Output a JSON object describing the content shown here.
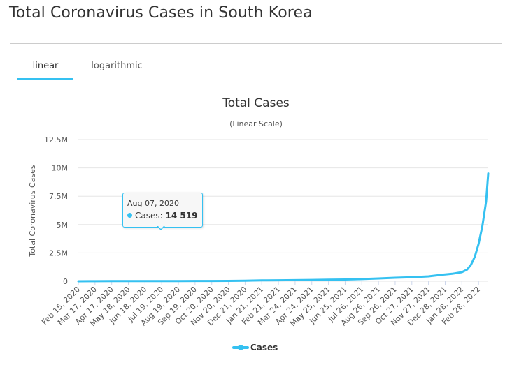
{
  "page": {
    "title": "Total Coronavirus Cases in South Korea"
  },
  "tabs": [
    {
      "label": "linear",
      "active": true
    },
    {
      "label": "logarithmic",
      "active": false
    }
  ],
  "tooltip": {
    "date": "Aug 07, 2020",
    "label": "Cases:",
    "value": "14 519"
  },
  "colors": {
    "series": "#35c1f1",
    "tab_active": "#35c1f1"
  },
  "chart_data": {
    "type": "line",
    "title": "Total Cases",
    "subtitle": "(Linear Scale)",
    "ylabel": "Total Coronavirus Cases",
    "xlabel": "",
    "ylim": [
      0,
      12500000
    ],
    "yticks": [
      0,
      2500000,
      5000000,
      7500000,
      10000000,
      12500000
    ],
    "ytick_labels": [
      "0",
      "2.5M",
      "5M",
      "7.5M",
      "10M",
      "12.5M"
    ],
    "xtick_labels": [
      "Feb 15, 2020",
      "Mar 17, 2020",
      "Apr 17, 2020",
      "May 18, 2020",
      "Jun 18, 2020",
      "Jul 19, 2020",
      "Aug 19, 2020",
      "Sep 19, 2020",
      "Oct 20, 2020",
      "Nov 20, 2020",
      "Dec 21, 2020",
      "Jan 21, 2021",
      "Feb 21, 2021",
      "Mar 24, 2021",
      "Apr 24, 2021",
      "May 25, 2021",
      "Jun 25, 2021",
      "Jul 26, 2021",
      "Aug 26, 2021",
      "Sep 26, 2021",
      "Oct 27, 2021",
      "Nov 27, 2021",
      "Dec 28, 2021",
      "Jan 28, 2022",
      "Feb 28, 2022"
    ],
    "grid": true,
    "legend": "bottom-center",
    "series": [
      {
        "name": "Cases",
        "x": [
          "Feb 15, 2020",
          "Mar 17, 2020",
          "Apr 17, 2020",
          "May 18, 2020",
          "Jun 18, 2020",
          "Jul 19, 2020",
          "Aug 07, 2020",
          "Aug 19, 2020",
          "Sep 19, 2020",
          "Oct 20, 2020",
          "Nov 20, 2020",
          "Dec 21, 2020",
          "Jan 21, 2021",
          "Feb 21, 2021",
          "Mar 24, 2021",
          "Apr 24, 2021",
          "May 25, 2021",
          "Jun 25, 2021",
          "Jul 26, 2021",
          "Aug 26, 2021",
          "Sep 26, 2021",
          "Oct 27, 2021",
          "Nov 27, 2021",
          "Dec 28, 2021",
          "Jan 10, 2022",
          "Jan 28, 2022",
          "Feb 07, 2022",
          "Feb 14, 2022",
          "Feb 21, 2022",
          "Feb 28, 2022",
          "Mar 07, 2022",
          "Mar 14, 2022",
          "Mar 18, 2022"
        ],
        "values": [
          28,
          8300,
          10600,
          11100,
          12300,
          13700,
          14519,
          16000,
          23000,
          25500,
          30700,
          51500,
          74300,
          87300,
          99800,
          117000,
          136000,
          154000,
          191000,
          247000,
          307000,
          357000,
          430000,
          603000,
          660000,
          800000,
          1040000,
          1460000,
          2160000,
          3290000,
          4830000,
          7010000,
          9510000
        ]
      }
    ]
  }
}
